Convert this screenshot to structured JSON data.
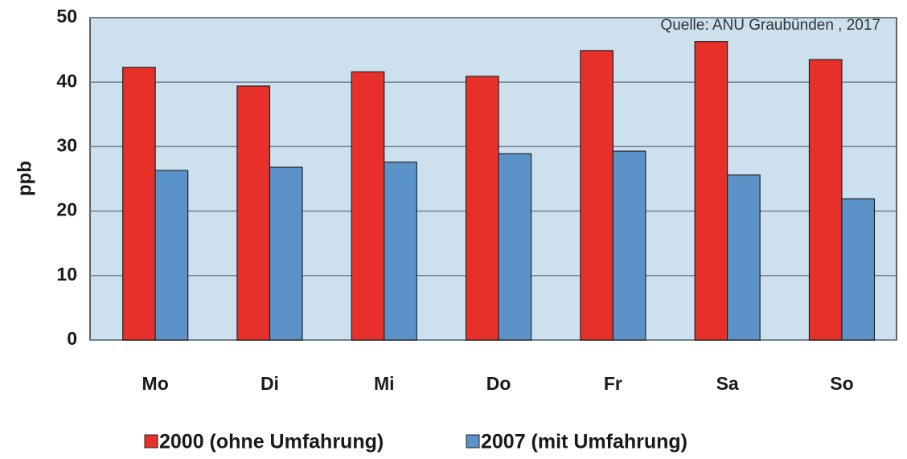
{
  "chart_data": {
    "type": "bar",
    "y_label": "ppb",
    "annotation": "Quelle: ANU Graubünden , 2017",
    "categories": [
      "Mo",
      "Di",
      "Mi",
      "Do",
      "Fr",
      "Sa",
      "So"
    ],
    "series": [
      {
        "name": "2000 (ohne Umfahrung)",
        "color": "#e8302a",
        "values": [
          42.3,
          39.4,
          41.6,
          40.9,
          44.9,
          46.3,
          43.5
        ]
      },
      {
        "name": "2007 (mit Umfahrung)",
        "color": "#5b93c9",
        "values": [
          26.3,
          26.8,
          27.6,
          28.9,
          29.3,
          25.6,
          21.9
        ]
      }
    ],
    "ylim": [
      0,
      50
    ],
    "yticks": [
      0,
      10,
      20,
      30,
      40,
      50
    ],
    "grid": true
  }
}
